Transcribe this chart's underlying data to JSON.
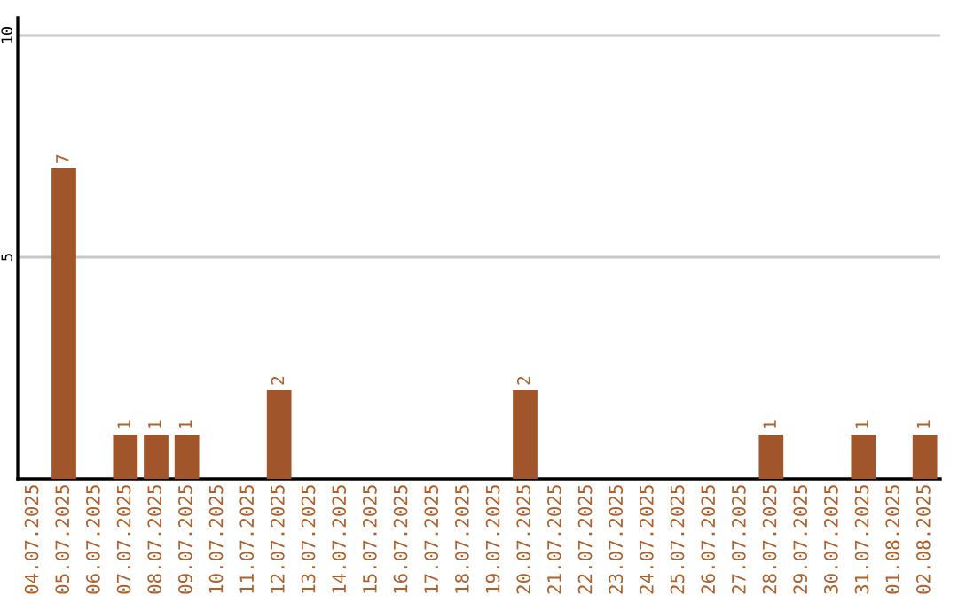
{
  "chart_data": {
    "type": "bar",
    "categories": [
      "04.07.2025",
      "05.07.2025",
      "06.07.2025",
      "07.07.2025",
      "08.07.2025",
      "09.07.2025",
      "10.07.2025",
      "11.07.2025",
      "12.07.2025",
      "13.07.2025",
      "14.07.2025",
      "15.07.2025",
      "16.07.2025",
      "17.07.2025",
      "18.07.2025",
      "19.07.2025",
      "20.07.2025",
      "21.07.2025",
      "22.07.2025",
      "23.07.2025",
      "24.07.2025",
      "25.07.2025",
      "26.07.2025",
      "27.07.2025",
      "28.07.2025",
      "29.07.2025",
      "30.07.2025",
      "31.07.2025",
      "01.08.2025",
      "02.08.2025"
    ],
    "values": [
      0,
      7,
      0,
      1,
      1,
      1,
      0,
      0,
      2,
      0,
      0,
      0,
      0,
      0,
      0,
      0,
      2,
      0,
      0,
      0,
      0,
      0,
      0,
      0,
      1,
      0,
      0,
      1,
      0,
      1
    ],
    "value_labels": [
      null,
      "7",
      null,
      "1",
      "1",
      "1",
      null,
      null,
      "2",
      null,
      null,
      null,
      null,
      null,
      null,
      null,
      "2",
      null,
      null,
      null,
      null,
      null,
      null,
      null,
      "1",
      null,
      null,
      "1",
      null,
      "1"
    ],
    "color": "#a0562a",
    "ylim": [
      0,
      10.4
    ],
    "yticks": [
      5,
      10
    ],
    "grid": "y"
  }
}
